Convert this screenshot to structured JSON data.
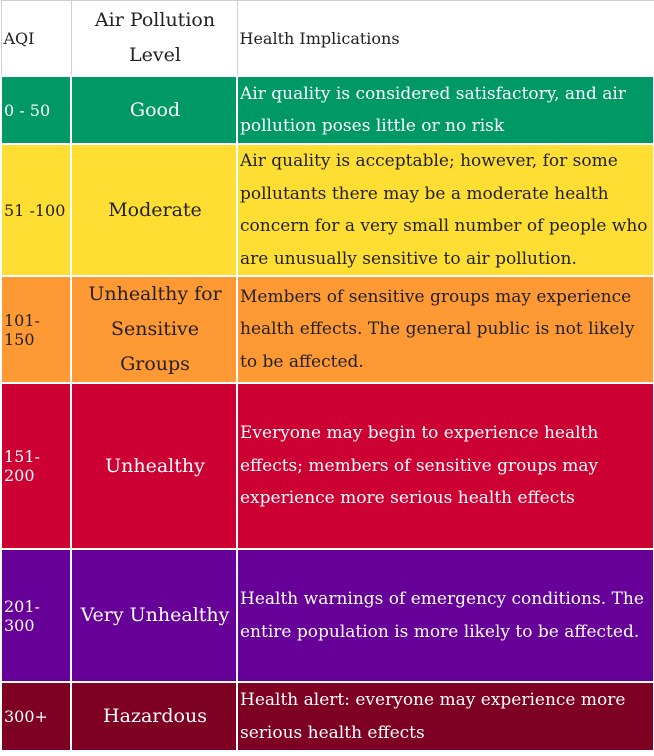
{
  "table": {
    "headers": {
      "aqi": "AQI",
      "level": "Air Pollution Level",
      "implications": "Health Implications"
    },
    "rows": [
      {
        "aqi": "0 - 50",
        "level": "Good",
        "implications": "Air quality is considered satisfactory, and air pollution poses little or no risk",
        "bg": "#009966",
        "text_color": "#ffffff"
      },
      {
        "aqi": "51 -100",
        "level": "Moderate",
        "implications": "Air quality is acceptable; however, for some pollutants there may be a moderate health concern for a very small number of people who are unusually sensitive to air pollution.",
        "bg": "#ffde33",
        "text_color": "#222222"
      },
      {
        "aqi": "101-150",
        "level": "Unhealthy for Sensitive Groups",
        "implications": "Members of sensitive groups may experience health effects. The general public is not likely to be affected.",
        "bg": "#ff9933",
        "text_color": "#222222"
      },
      {
        "aqi": "151-200",
        "level": "Unhealthy",
        "implications": "Everyone may begin to experience health effects; members of sensitive groups may experience more serious health effects",
        "bg": "#cc0033",
        "text_color": "#ffffff"
      },
      {
        "aqi": "201-300",
        "level": "Very Unhealthy",
        "implications": "Health warnings of emergency conditions. The entire population is more likely to be affected.",
        "bg": "#660099",
        "text_color": "#ffffff"
      },
      {
        "aqi": "300+",
        "level": "Hazardous",
        "implications": "Health alert: everyone may experience more serious health effects",
        "bg": "#7e0023",
        "text_color": "#ffffff"
      }
    ]
  }
}
